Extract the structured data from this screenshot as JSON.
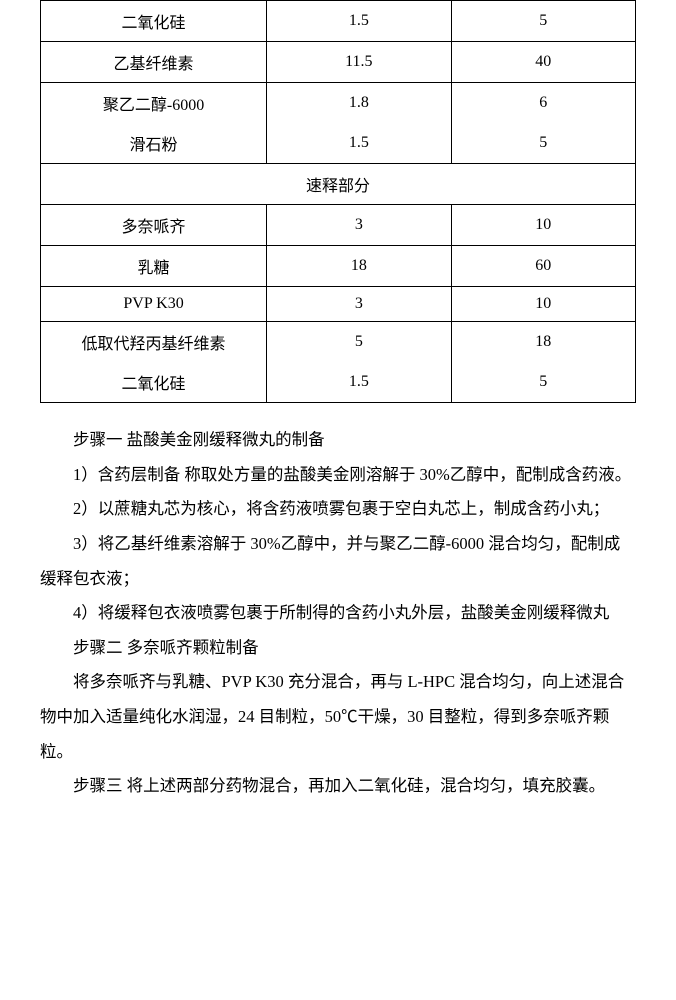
{
  "table": {
    "rows_top": [
      {
        "c1": "二氧化硅",
        "c2": "1.5",
        "c3": "5"
      },
      {
        "c1": "乙基纤维素",
        "c2": "11.5",
        "c3": "40"
      }
    ],
    "rows_top_double": [
      {
        "c1": "聚乙二醇-6000",
        "c2": "1.8",
        "c3": "6"
      },
      {
        "c1": "滑石粉",
        "c2": "1.5",
        "c3": "5"
      }
    ],
    "section_header": "速释部分",
    "rows_bottom": [
      {
        "c1": "多奈哌齐",
        "c2": "3",
        "c3": "10"
      },
      {
        "c1": "乳糖",
        "c2": "18",
        "c3": "60"
      },
      {
        "c1": "PVP K30",
        "c2": "3",
        "c3": "10"
      }
    ],
    "rows_bottom_double": [
      {
        "c1": "低取代羟丙基纤维素",
        "c2": "5",
        "c3": "18"
      },
      {
        "c1": "二氧化硅",
        "c2": "1.5",
        "c3": "5"
      }
    ]
  },
  "body": {
    "p1": "步骤一   盐酸美金刚缓释微丸的制备",
    "p2": "1）含药层制备  称取处方量的盐酸美金刚溶解于 30%乙醇中，配制成含药液。",
    "p3": "2）以蔗糖丸芯为核心，将含药液喷雾包裹于空白丸芯上，制成含药小丸；",
    "p4": "3）将乙基纤维素溶解于 30%乙醇中，并与聚乙二醇-6000 混合均匀，配制成缓释包衣液；",
    "p5": "4）将缓释包衣液喷雾包裹于所制得的含药小丸外层，盐酸美金刚缓释微丸",
    "p6": "步骤二   多奈哌齐颗粒制备",
    "p7": "将多奈哌齐与乳糖、PVP K30 充分混合，再与 L-HPC 混合均匀，向上述混合物中加入适量纯化水润湿，24 目制粒，50℃干燥，30 目整粒，得到多奈哌齐颗粒。",
    "p8": "步骤三  将上述两部分药物混合，再加入二氧化硅，混合均匀，填充胶囊。"
  }
}
